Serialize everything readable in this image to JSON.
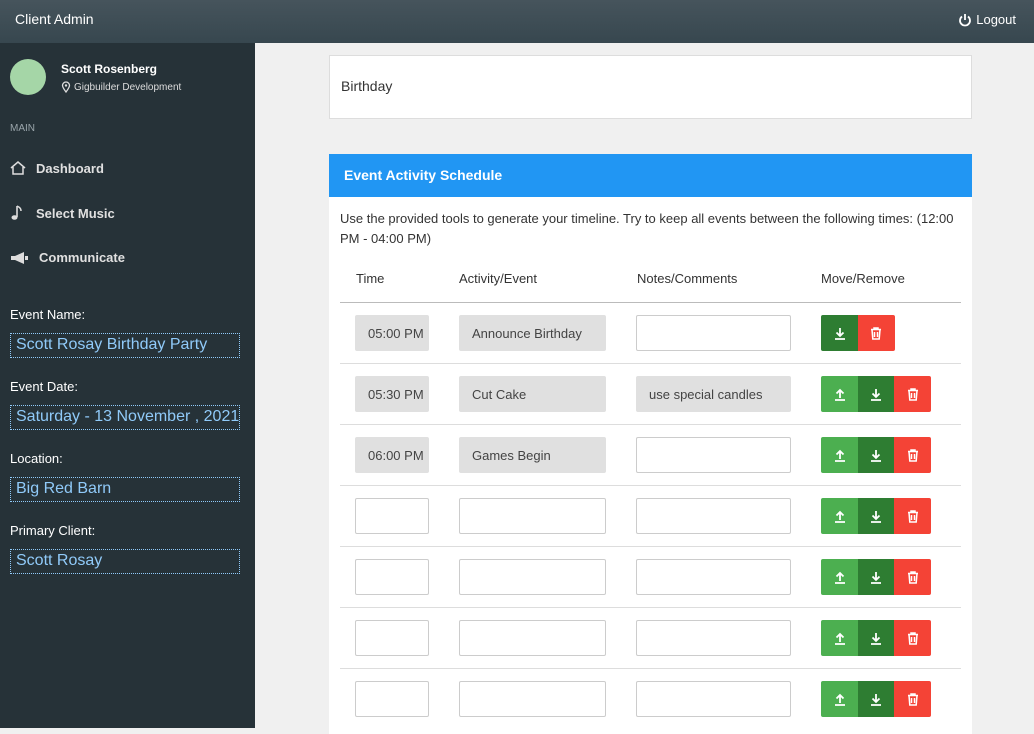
{
  "header": {
    "title": "Client Admin",
    "logout": "Logout"
  },
  "sidebar": {
    "user_name": "Scott Rosenberg",
    "company": "Gigbuilder Development",
    "section": "MAIN",
    "menu": [
      "Dashboard",
      "Select Music",
      "Communicate"
    ],
    "fields": [
      {
        "label": "Event Name:",
        "value": "Scott Rosay Birthday Party"
      },
      {
        "label": "Event Date:",
        "value": "Saturday - 13 November , 2021"
      },
      {
        "label": "Location:",
        "value": "Big Red Barn"
      },
      {
        "label": "Primary Client:",
        "value": "Scott Rosay"
      }
    ]
  },
  "event_card": {
    "title": "Birthday"
  },
  "schedule": {
    "title": "Event Activity Schedule",
    "description": "Use the provided tools to generate your timeline. Try to keep all events between the following times: (12:00 PM - 04:00 PM)",
    "columns": [
      "Time",
      "Activity/Event",
      "Notes/Comments",
      "Move/Remove"
    ],
    "rows": [
      {
        "time": "05:00 PM",
        "activity": "Announce Birthday"
      },
      {
        "time": "05:30 PM",
        "activity": "Cut Cake",
        "notes": "use special candles"
      },
      {
        "time": "06:00 PM",
        "activity": "Games Begin"
      },
      {},
      {},
      {},
      {}
    ]
  }
}
